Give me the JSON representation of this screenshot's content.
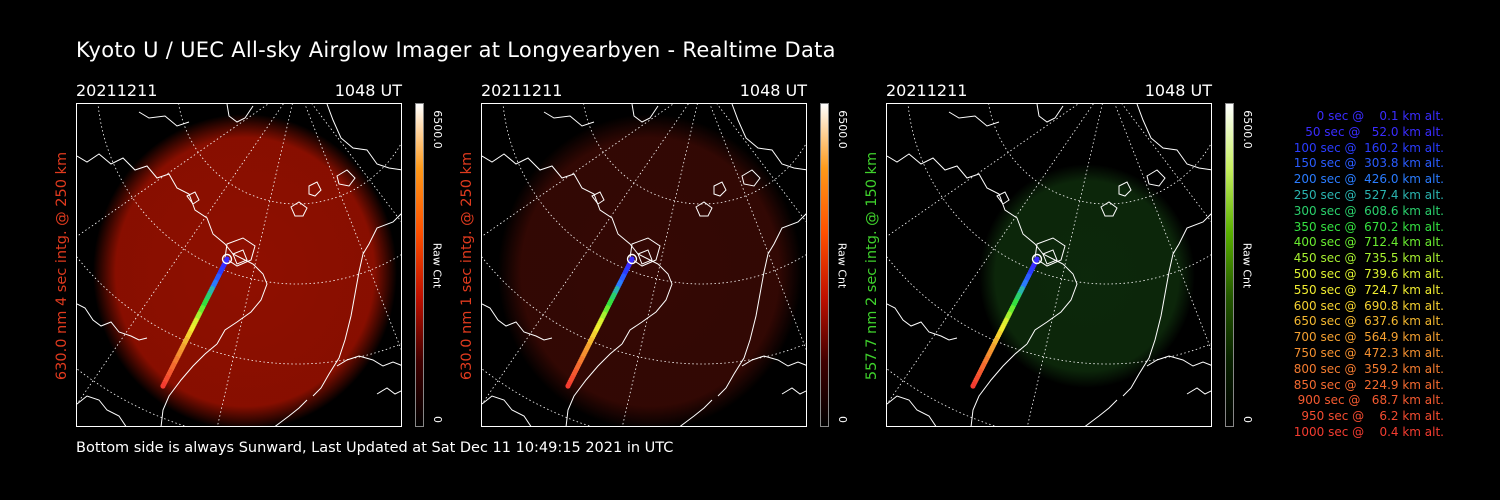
{
  "header": {
    "title": "Kyoto U / UEC All-sky Airglow Imager at Longyearbyen - Realtime Data"
  },
  "footer": {
    "text": "Bottom side is always Sunward, Last Updated at Sat Dec 11 10:49:15 2021 in UTC"
  },
  "panels": [
    {
      "date": "20211211",
      "time": "1048 UT",
      "side_label": "630.0 nm 4 sec intg. @ 250 km",
      "side_color": "#e03a1e",
      "colorbar_max": "6500.0",
      "colorbar_min": "0",
      "colorbar_unit": "Raw Cnt",
      "colorbar_colors": [
        "#ffffff",
        "#ff9a1a",
        "#ff5000",
        "#c01000",
        "#400000",
        "#000000"
      ],
      "glow_color": "#a81200",
      "glow_level": 0.85
    },
    {
      "date": "20211211",
      "time": "1048 UT",
      "side_label": "630.0 nm 1 sec intg. @ 250 km",
      "side_color": "#e03a1e",
      "colorbar_max": "6500.0",
      "colorbar_min": "0",
      "colorbar_unit": "Raw Cnt",
      "colorbar_colors": [
        "#ffffff",
        "#ff9a1a",
        "#ff5000",
        "#c01000",
        "#400000",
        "#000000"
      ],
      "glow_color": "#3a0904",
      "glow_level": 0.9
    },
    {
      "date": "20211211",
      "time": "1048 UT",
      "side_label": "557.7 nm 2 sec intg. @ 150 km",
      "side_color": "#3fd12c",
      "colorbar_max": "6500.0",
      "colorbar_min": "0",
      "colorbar_unit": "Raw Cnt",
      "colorbar_colors": [
        "#ffffff",
        "#c8f060",
        "#5ab000",
        "#245800",
        "#082000",
        "#000000"
      ],
      "glow_color": "#0e2c0c",
      "glow_level": 0.9
    }
  ],
  "legend": [
    {
      "text": "   0 sec @    0.1 km alt.",
      "color": "#3a2cff"
    },
    {
      "text": "  50 sec @   52.0 km alt.",
      "color": "#3a2cff"
    },
    {
      "text": " 100 sec @  160.2 km alt.",
      "color": "#2a3cff"
    },
    {
      "text": " 150 sec @  303.8 km alt.",
      "color": "#2a5cff"
    },
    {
      "text": " 200 sec @  426.0 km alt.",
      "color": "#2a7cff"
    },
    {
      "text": " 250 sec @  527.4 km alt.",
      "color": "#2ab4b0"
    },
    {
      "text": " 300 sec @  608.6 km alt.",
      "color": "#2ad06c"
    },
    {
      "text": " 350 sec @  670.2 km alt.",
      "color": "#34e040"
    },
    {
      "text": " 400 sec @  712.4 km alt.",
      "color": "#6aec30"
    },
    {
      "text": " 450 sec @  735.5 km alt.",
      "color": "#a6f030"
    },
    {
      "text": " 500 sec @  739.6 km alt.",
      "color": "#dcf030"
    },
    {
      "text": " 550 sec @  724.7 km alt.",
      "color": "#f0ec30"
    },
    {
      "text": " 600 sec @  690.8 km alt.",
      "color": "#f4d030"
    },
    {
      "text": " 650 sec @  637.6 km alt.",
      "color": "#f4b830"
    },
    {
      "text": " 700 sec @  564.9 km alt.",
      "color": "#f4a030"
    },
    {
      "text": " 750 sec @  472.3 km alt.",
      "color": "#f49030"
    },
    {
      "text": " 800 sec @  359.2 km alt.",
      "color": "#f47c30"
    },
    {
      "text": " 850 sec @  224.9 km alt.",
      "color": "#f46a30"
    },
    {
      "text": " 900 sec @   68.7 km alt.",
      "color": "#f45a30"
    },
    {
      "text": " 950 sec @    6.2 km alt.",
      "color": "#f44c30"
    },
    {
      "text": "1000 sec @    0.4 km alt.",
      "color": "#f43c30"
    }
  ]
}
